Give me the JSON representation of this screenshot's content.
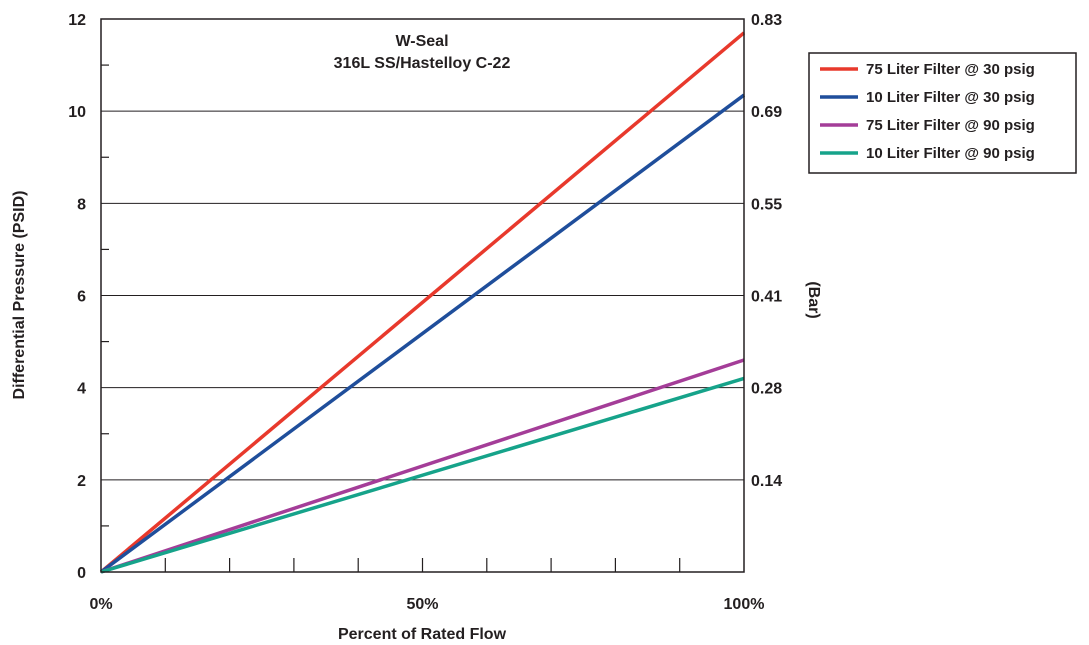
{
  "chart_data": {
    "type": "line",
    "title": "W-Seal",
    "subtitle": "316L SS/Hastelloy C-22",
    "xlabel": "Percent of Rated Flow",
    "ylabel": "Differential Pressure (PSID)",
    "y2label": "(Bar)",
    "xlim": [
      0,
      100
    ],
    "ylim": [
      0,
      12
    ],
    "x_ticks": [
      "0%",
      "50%",
      "100%"
    ],
    "y_ticks": [
      "0",
      "2",
      "4",
      "6",
      "8",
      "10",
      "12"
    ],
    "y2_ticks": [
      "0.14",
      "0.28",
      "0.41",
      "0.55",
      "0.69",
      "0.83"
    ],
    "grid": "horizontal",
    "legend_position": "right",
    "series": [
      {
        "name": "75 Liter Filter @ 30 psig",
        "color": "#e8392c",
        "x": [
          0,
          100
        ],
        "y": [
          0,
          11.7
        ]
      },
      {
        "name": "10 Liter Filter @ 30 psig",
        "color": "#1f4e9b",
        "x": [
          0,
          100
        ],
        "y": [
          0,
          10.35
        ]
      },
      {
        "name": "75 Liter Filter @ 90 psig",
        "color": "#a43d98",
        "x": [
          0,
          100
        ],
        "y": [
          0,
          4.6
        ]
      },
      {
        "name": "10 Liter Filter @ 90 psig",
        "color": "#16a38a",
        "x": [
          0,
          100
        ],
        "y": [
          0,
          4.2
        ]
      }
    ]
  }
}
